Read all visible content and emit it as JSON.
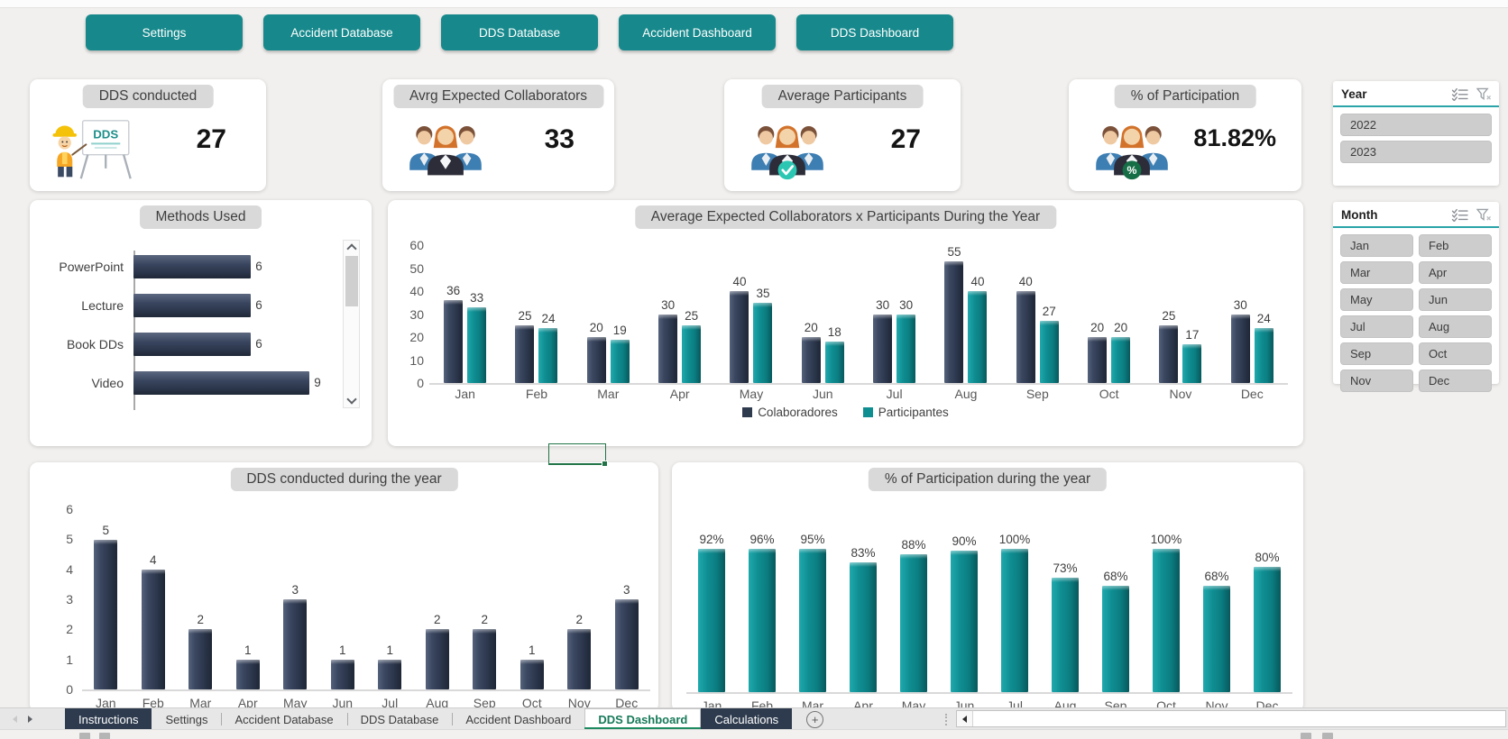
{
  "nav_buttons": [
    "Settings",
    "Accident Database",
    "DDS Database",
    "Accident Dashboard",
    "DDS Dashboard"
  ],
  "kpi_cards": [
    {
      "title": "DDS conducted",
      "value": "27",
      "icon": "dds-presenter-icon"
    },
    {
      "title": "Avrg Expected Collaborators",
      "value": "33",
      "icon": "people-group-icon"
    },
    {
      "title": "Average Participants",
      "value": "27",
      "icon": "people-group-check-icon"
    },
    {
      "title": "% of Participation",
      "value": "81.82%",
      "icon": "people-group-percent-icon"
    }
  ],
  "slicers": {
    "year": {
      "title": "Year",
      "items": [
        "2022",
        "2023"
      ]
    },
    "month": {
      "title": "Month",
      "items": [
        "Jan",
        "Feb",
        "Mar",
        "Apr",
        "May",
        "Jun",
        "Jul",
        "Aug",
        "Sep",
        "Oct",
        "Nov",
        "Dec"
      ]
    }
  },
  "chart_data": [
    {
      "id": "methods",
      "type": "bar",
      "orientation": "horizontal",
      "title": "Methods Used",
      "categories": [
        "PowerPoint",
        "Lecture",
        "Book DDs",
        "Video"
      ],
      "values": [
        6,
        6,
        6,
        9
      ],
      "xlim": [
        0,
        10
      ],
      "grid": false,
      "bar_color": "#2f3a51"
    },
    {
      "id": "collaborators_participants",
      "type": "bar",
      "title": "Average Expected Collaborators x Participants During the Year",
      "categories": [
        "Jan",
        "Feb",
        "Mar",
        "Apr",
        "May",
        "Jun",
        "Jul",
        "Aug",
        "Sep",
        "Oct",
        "Nov",
        "Dec"
      ],
      "series": [
        {
          "name": "Colaboradores",
          "color": "#2e3a4e",
          "values": [
            36,
            25,
            20,
            30,
            40,
            20,
            30,
            55,
            40,
            20,
            25,
            30
          ]
        },
        {
          "name": "Participantes",
          "color": "#0f8e92",
          "values": [
            33,
            24,
            19,
            25,
            35,
            18,
            30,
            40,
            27,
            20,
            17,
            24
          ]
        }
      ],
      "ylim": [
        0,
        60
      ],
      "yticks": [
        0,
        10,
        20,
        30,
        40,
        50,
        60
      ],
      "grid": false,
      "legend_position": "bottom"
    },
    {
      "id": "dds_during_year",
      "type": "bar",
      "title": "DDS conducted during the year",
      "categories": [
        "Jan",
        "Feb",
        "Mar",
        "Apr",
        "May",
        "Jun",
        "Jul",
        "Aug",
        "Sep",
        "Oct",
        "Nov",
        "Dec"
      ],
      "values": [
        5,
        4,
        2,
        1,
        3,
        1,
        1,
        2,
        2,
        1,
        2,
        3
      ],
      "ylim": [
        0,
        6
      ],
      "yticks": [
        0,
        1,
        2,
        3,
        4,
        5,
        6
      ],
      "grid": false,
      "bar_color": "#2f3a51"
    },
    {
      "id": "participation_during_year",
      "type": "bar",
      "title": "% of Participation during the year",
      "categories": [
        "Jan",
        "Feb",
        "Mar",
        "Apr",
        "May",
        "Jun",
        "Jul",
        "Aug",
        "Sep",
        "Oct",
        "Nov",
        "Dec"
      ],
      "values": [
        92,
        96,
        95,
        83,
        88,
        90,
        100,
        73,
        68,
        100,
        68,
        80
      ],
      "labels": [
        "92%",
        "96%",
        "95%",
        "83%",
        "88%",
        "90%",
        "100%",
        "73%",
        "68%",
        "100%",
        "68%",
        "80%"
      ],
      "ylim": [
        0,
        100
      ],
      "grid": false,
      "bar_color": "#0f8e92"
    }
  ],
  "sheet_tabs": [
    {
      "label": "Instructions",
      "variant": "dark"
    },
    {
      "label": "Settings",
      "variant": "light"
    },
    {
      "label": "Accident Database",
      "variant": "light"
    },
    {
      "label": "DDS Database",
      "variant": "light"
    },
    {
      "label": "Accident Dashboard",
      "variant": "light"
    },
    {
      "label": "DDS Dashboard",
      "variant": "active"
    },
    {
      "label": "Calculations",
      "variant": "dark"
    }
  ],
  "tab_bar": {
    "add_sheet_icon": "+"
  },
  "colors": {
    "accent_teal": "#17898c",
    "bar_navy": "#2e3a4e",
    "bar_teal": "#0f8e92",
    "slicer_underline": "#2aa4a8",
    "active_tab_green": "#1e8a5f",
    "selection_green": "#217346"
  }
}
